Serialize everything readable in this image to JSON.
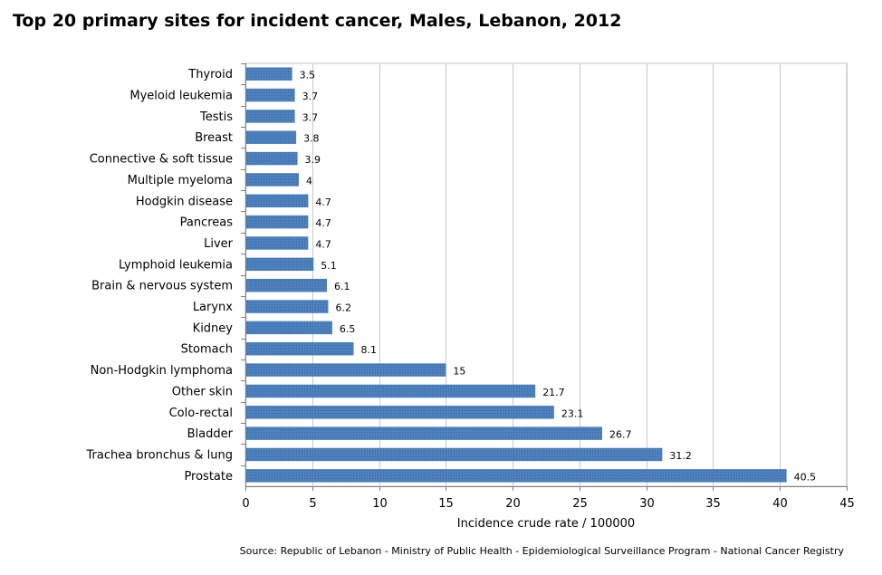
{
  "chart_data": {
    "type": "bar",
    "orientation": "horizontal",
    "title": "Top 20 primary sites for incident cancer, Males, Lebanon, 2012",
    "xlabel": "Incidence crude rate / 100000",
    "ylabel": "",
    "xlim": [
      0,
      45
    ],
    "x_ticks": [
      0,
      5,
      10,
      15,
      20,
      25,
      30,
      35,
      40,
      45
    ],
    "grid": "vertical",
    "bar_color": "#4a7ebb",
    "categories": [
      "Thyroid",
      "Myeloid leukemia",
      "Testis",
      "Breast",
      "Connective & soft tissue",
      "Multiple myeloma",
      "Hodgkin disease",
      "Pancreas",
      "Liver",
      "Lymphoid leukemia",
      "Brain & nervous system",
      "Larynx",
      "Kidney",
      "Stomach",
      "Non-Hodgkin lymphoma",
      "Other skin",
      "Colo-rectal",
      "Bladder",
      "Trachea bronchus & lung",
      "Prostate"
    ],
    "values": [
      3.5,
      3.7,
      3.7,
      3.8,
      3.9,
      4,
      4.7,
      4.7,
      4.7,
      5.1,
      6.1,
      6.2,
      6.5,
      8.1,
      15,
      21.7,
      23.1,
      26.7,
      31.2,
      40.5
    ],
    "source": "Source:  Republic of Lebanon  - Ministry of Public Health - Epidemiological Surveillance Program - National Cancer Registry"
  }
}
